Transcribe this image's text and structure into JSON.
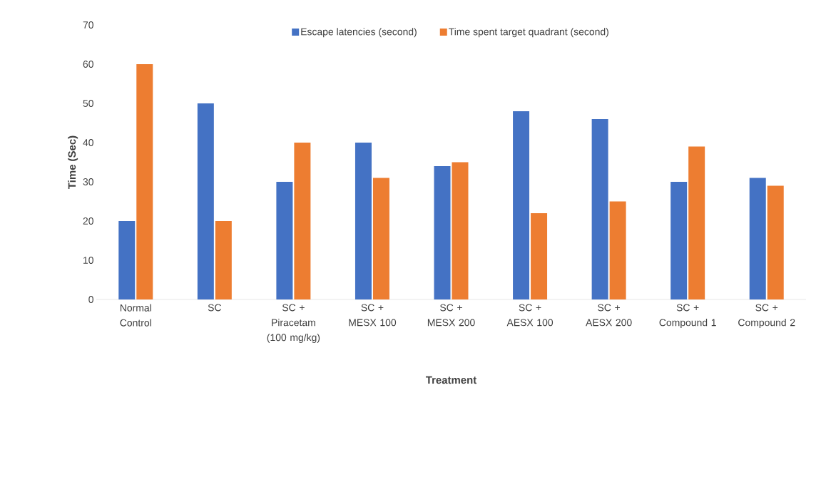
{
  "chart_data": {
    "type": "bar",
    "xlabel": "Treatment",
    "ylabel": "Time (Sec)",
    "categories": [
      "Normal Control",
      "SC",
      "SC + Piracetam (100 mg/kg)",
      "SC + MESX 100",
      "SC + MESX 200",
      "SC + AESX 100",
      "SC + AESX 200",
      "SC + Compound 1",
      "SC + Compound 2"
    ],
    "series": [
      {
        "name": "Escape latencies (second)",
        "color": "#4472c4",
        "values": [
          20,
          50,
          30,
          40,
          34,
          48,
          46,
          30,
          31
        ]
      },
      {
        "name": "Time spent target quadrant (second)",
        "color": "#ed7d31",
        "values": [
          60,
          20,
          40,
          31,
          35,
          22,
          25,
          39,
          29
        ]
      }
    ],
    "ylim": [
      0,
      70
    ],
    "yticks": [
      0,
      10,
      20,
      30,
      40,
      50,
      60,
      70
    ],
    "legend": "top"
  }
}
